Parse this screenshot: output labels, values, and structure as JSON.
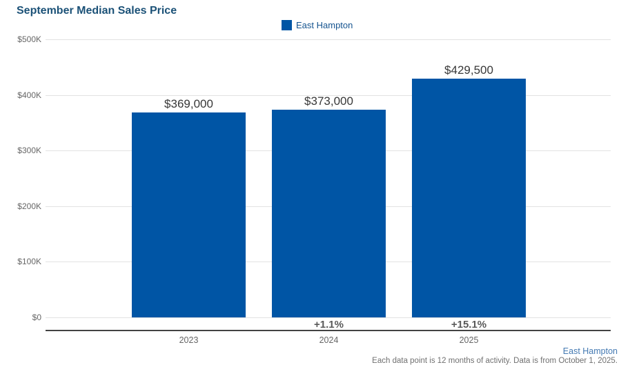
{
  "title": "September Median Sales Price",
  "legend": {
    "label": "East Hampton",
    "swatch_color": "#0055A5"
  },
  "footer": {
    "link_label": "East Hampton",
    "note": "Each data point is 12 months of activity. Data is from October 1, 2025."
  },
  "colors": {
    "bar": "#0055A5",
    "title": "#1B5177",
    "legend_text": "#14538F",
    "link": "#4379B2",
    "gridline": "#e2e2e2",
    "axis_line": "#424242",
    "tick_label": "#666666",
    "value_label": "#383838",
    "pct_label": "#595959"
  },
  "chart_data": {
    "type": "bar",
    "title": "September Median Sales Price",
    "categories": [
      "2023",
      "2024",
      "2025"
    ],
    "series": [
      {
        "name": "East Hampton",
        "values": [
          369000,
          373000,
          429500
        ]
      }
    ],
    "value_labels": [
      "$369,000",
      "$373,000",
      "$429,500"
    ],
    "pct_change_labels": [
      "",
      "+1.1%",
      "+15.1%"
    ],
    "xlabel": "",
    "ylabel": "",
    "ylim": [
      0,
      500000
    ],
    "ytick_values": [
      0,
      100000,
      200000,
      300000,
      400000,
      500000
    ],
    "ytick_labels": [
      "$0",
      "$100K",
      "$200K",
      "$300K",
      "$400K",
      "$500K"
    ],
    "grid": true,
    "legend_position": "top-center"
  }
}
